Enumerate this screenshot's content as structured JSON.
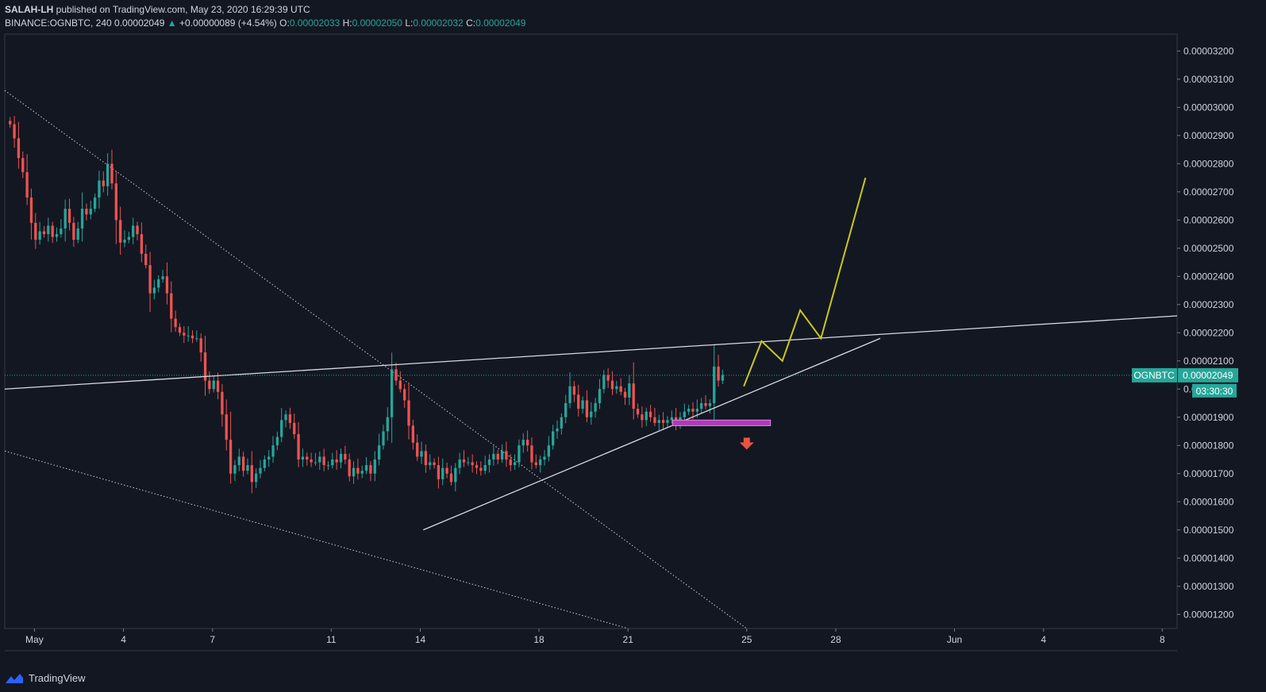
{
  "header": {
    "author": "SALAH-LH",
    "published_text": "published on TradingView.com, May 23, 2020 16:29:39 UTC",
    "symbol": "BINANCE:OGNBTC, 240",
    "last": "0.00002049",
    "change_arrow": "▲",
    "change": "+0.00000089 (+4.54%)",
    "o_label": "O:",
    "o": "0.00002033",
    "h_label": "H:",
    "h": "0.00002050",
    "l_label": "L:",
    "l": "0.00002032",
    "c_label": "C:",
    "c": "0.00002049"
  },
  "price_tag": {
    "symbol": "OGNBTC",
    "price": "0.00002049",
    "countdown": "03:30:30"
  },
  "footer": {
    "brand": "TradingView"
  },
  "colors": {
    "up": "#26a69a",
    "down": "#ef5350",
    "projection": "#c9c91a",
    "zone": "#b03ab8",
    "arrow": "#e8553e",
    "background": "#131722"
  },
  "chart_data": {
    "type": "candlestick",
    "symbol": "BINANCE:OGNBTC",
    "interval": "240",
    "ylim": [
      1.15e-05,
      3.26e-05
    ],
    "y_ticks": [
      "0.00003200",
      "0.00003100",
      "0.00003000",
      "0.00002900",
      "0.00002800",
      "0.00002700",
      "0.00002600",
      "0.00002500",
      "0.00002400",
      "0.00002300",
      "0.00002200",
      "0.00002100",
      "0.00002000",
      "0.00001900",
      "0.00001800",
      "0.00001700",
      "0.00001600",
      "0.00001500",
      "0.00001400",
      "0.00001300",
      "0.00001200"
    ],
    "y_tick_values": [
      3.2e-05,
      3.1e-05,
      3e-05,
      2.9e-05,
      2.8e-05,
      2.7e-05,
      2.6e-05,
      2.5e-05,
      2.4e-05,
      2.3e-05,
      2.2e-05,
      2.1e-05,
      2e-05,
      1.9e-05,
      1.8e-05,
      1.7e-05,
      1.6e-05,
      1.5e-05,
      1.4e-05,
      1.3e-05,
      1.2e-05
    ],
    "x_axis": {
      "unit": "day index from Apr 30, 2020",
      "range": [
        0,
        39.5
      ]
    },
    "x_ticks": [
      {
        "label": "May",
        "day": 1
      },
      {
        "label": "4",
        "day": 4
      },
      {
        "label": "7",
        "day": 7
      },
      {
        "label": "11",
        "day": 11
      },
      {
        "label": "14",
        "day": 14
      },
      {
        "label": "18",
        "day": 18
      },
      {
        "label": "21",
        "day": 21
      },
      {
        "label": "25",
        "day": 25
      },
      {
        "label": "28",
        "day": 28
      },
      {
        "label": "Jun",
        "day": 32
      },
      {
        "label": "4",
        "day": 35
      },
      {
        "label": "8",
        "day": 39
      }
    ],
    "closes": [
      2.94e-05,
      2.89e-05,
      2.82e-05,
      2.77e-05,
      2.68e-05,
      2.59e-05,
      2.53e-05,
      2.56e-05,
      2.55e-05,
      2.58e-05,
      2.54e-05,
      2.55e-05,
      2.57e-05,
      2.64e-05,
      2.59e-05,
      2.53e-05,
      2.57e-05,
      2.64e-05,
      2.62e-05,
      2.64e-05,
      2.68e-05,
      2.74e-05,
      2.72e-05,
      2.8e-05,
      2.73e-05,
      2.6e-05,
      2.52e-05,
      2.53e-05,
      2.54e-05,
      2.58e-05,
      2.55e-05,
      2.48e-05,
      2.44e-05,
      2.34e-05,
      2.36e-05,
      2.39e-05,
      2.4e-05,
      2.34e-05,
      2.25e-05,
      2.22e-05,
      2.2e-05,
      2.19e-05,
      2.19e-05,
      2.18e-05,
      2.18e-05,
      2.13e-05,
      2.03e-05,
      2e-05,
      2.03e-05,
      1.99e-05,
      1.91e-05,
      1.82e-05,
      1.7e-05,
      1.73e-05,
      1.76e-05,
      1.71e-05,
      1.73e-05,
      1.67e-05,
      1.7e-05,
      1.72e-05,
      1.75e-05,
      1.76e-05,
      1.8e-05,
      1.83e-05,
      1.89e-05,
      1.91e-05,
      1.88e-05,
      1.84e-05,
      1.75e-05,
      1.76e-05,
      1.75e-05,
      1.74e-05,
      1.74e-05,
      1.76e-05,
      1.73e-05,
      1.73e-05,
      1.75e-05,
      1.74e-05,
      1.77e-05,
      1.75e-05,
      1.69e-05,
      1.72e-05,
      1.7e-05,
      1.71e-05,
      1.73e-05,
      1.7e-05,
      1.75e-05,
      1.8e-05,
      1.85e-05,
      1.9e-05,
      2.07e-05,
      2.03e-05,
      2e-05,
      1.96e-05,
      1.87e-05,
      1.81e-05,
      1.76e-05,
      1.78e-05,
      1.73e-05,
      1.74e-05,
      1.73e-05,
      1.68e-05,
      1.72e-05,
      1.7e-05,
      1.67e-05,
      1.72e-05,
      1.75e-05,
      1.74e-05,
      1.74e-05,
      1.73e-05,
      1.72e-05,
      1.71e-05,
      1.73e-05,
      1.75e-05,
      1.77e-05,
      1.75e-05,
      1.78e-05,
      1.75e-05,
      1.73e-05,
      1.74e-05,
      1.8e-05,
      1.82e-05,
      1.8e-05,
      1.74e-05,
      1.73e-05,
      1.75e-05,
      1.76e-05,
      1.8e-05,
      1.85e-05,
      1.86e-05,
      1.9e-05,
      1.95e-05,
      2.01e-05,
      1.98e-05,
      1.93e-05,
      1.96e-05,
      1.9e-05,
      1.92e-05,
      1.95e-05,
      2e-05,
      2.05e-05,
      2.03e-05,
      2e-05,
      2.01e-05,
      1.99e-05,
      1.97e-05,
      2.02e-05,
      1.93e-05,
      1.91e-05,
      1.89e-05,
      1.92e-05,
      1.9e-05,
      1.88e-05,
      1.89e-05,
      1.88e-05,
      1.89e-05,
      1.9e-05,
      1.88e-05,
      1.9e-05,
      1.92e-05,
      1.93e-05,
      1.92e-05,
      1.93e-05,
      1.95e-05,
      1.94e-05,
      1.95e-05,
      2.08e-05,
      2.03e-05,
      2.05e-05
    ],
    "overlays": {
      "upper_resistance_line": [
        [
          0,
          2e-05
        ],
        [
          39.5,
          2.26e-05
        ]
      ],
      "rising_support_line": [
        [
          14.1,
          1.5e-05
        ],
        [
          29.5,
          2.18e-05
        ]
      ],
      "dotted_downtrend_upper": [
        [
          0,
          3.06e-05
        ],
        [
          25,
          1.15e-05
        ]
      ],
      "dotted_downtrend_lower": [
        [
          0,
          1.78e-05
        ],
        [
          21,
          1.15e-05
        ]
      ],
      "current_price_line": 2.049e-05,
      "projection_path": [
        [
          24.9,
          2.01e-05
        ],
        [
          25.5,
          2.17e-05
        ],
        [
          26.2,
          2.1e-05
        ],
        [
          26.8,
          2.28e-05
        ],
        [
          27.5,
          2.18e-05
        ],
        [
          29.0,
          2.75e-05
        ]
      ],
      "support_zone": {
        "x": [
          22.5,
          25.8
        ],
        "y": [
          1.87e-05,
          1.89e-05
        ]
      },
      "down_arrow": {
        "x": 25.0,
        "y": 1.805e-05
      }
    }
  }
}
